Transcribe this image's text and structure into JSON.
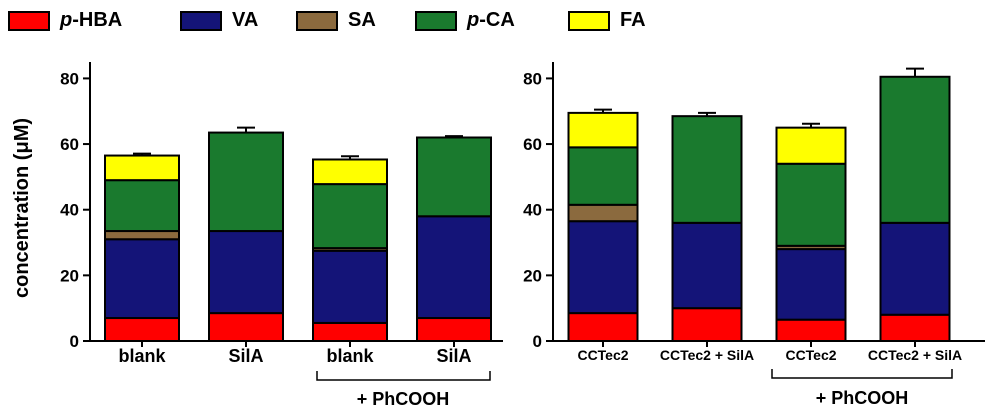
{
  "legend": [
    {
      "prefix": "p",
      "label": "-HBA",
      "color": "#ff0000"
    },
    {
      "prefix": "",
      "label": "VA",
      "color": "#141478"
    },
    {
      "prefix": "",
      "label": "SA",
      "color": "#8b6a3e"
    },
    {
      "prefix": "p",
      "label": "-CA",
      "color": "#1a7a2e"
    },
    {
      "prefix": "",
      "label": "FA",
      "color": "#ffff00"
    }
  ],
  "ylabel": "concentration (μM)",
  "chart_data": [
    {
      "type": "bar",
      "stacked": true,
      "categories": [
        "blank",
        "SilA",
        "blank",
        "SilA"
      ],
      "group_label": "+ PhCOOH",
      "ylim": [
        0,
        85
      ],
      "yticks": [
        0,
        20,
        40,
        60,
        80
      ],
      "series": [
        {
          "name": "p-HBA",
          "values": [
            7,
            8.5,
            5.5,
            7
          ],
          "errors": [
            0.6,
            0.5,
            0.5,
            0.4
          ]
        },
        {
          "name": "VA",
          "values": [
            24,
            25,
            22,
            31
          ],
          "errors": [
            0.8,
            0.8,
            0.8,
            1.0
          ]
        },
        {
          "name": "SA",
          "values": [
            2.5,
            0,
            0.8,
            0
          ],
          "errors": [
            0.4,
            0,
            0.3,
            0
          ]
        },
        {
          "name": "p-CA",
          "values": [
            15.5,
            30,
            19.5,
            24
          ],
          "errors": [
            0.6,
            1.5,
            1.0,
            0.4
          ]
        },
        {
          "name": "FA",
          "values": [
            7.5,
            0,
            7.5,
            0
          ],
          "errors": [
            0.6,
            0,
            1.0,
            0
          ]
        }
      ]
    },
    {
      "type": "bar",
      "stacked": true,
      "categories": [
        "CCTec2",
        "CCTec2 + SilA",
        "CCTec2",
        "CCTec2 + SilA"
      ],
      "group_label": "+ PhCOOH",
      "ylim": [
        0,
        85
      ],
      "yticks": [
        0,
        20,
        40,
        60,
        80
      ],
      "series": [
        {
          "name": "p-HBA",
          "values": [
            8.5,
            10,
            6.5,
            8
          ],
          "errors": [
            0.6,
            1.0,
            0.4,
            0.3
          ]
        },
        {
          "name": "VA",
          "values": [
            28,
            26,
            21.5,
            28
          ],
          "errors": [
            2.0,
            2.0,
            0.8,
            3.0
          ]
        },
        {
          "name": "SA",
          "values": [
            5,
            0,
            1,
            0
          ],
          "errors": [
            0.7,
            0,
            0.3,
            0
          ]
        },
        {
          "name": "p-CA",
          "values": [
            17.5,
            32.5,
            25,
            44.5
          ],
          "errors": [
            1.5,
            1.0,
            1.0,
            2.5
          ]
        },
        {
          "name": "FA",
          "values": [
            10.5,
            0,
            11,
            0
          ],
          "errors": [
            1.0,
            0,
            1.2,
            0
          ]
        }
      ]
    }
  ]
}
